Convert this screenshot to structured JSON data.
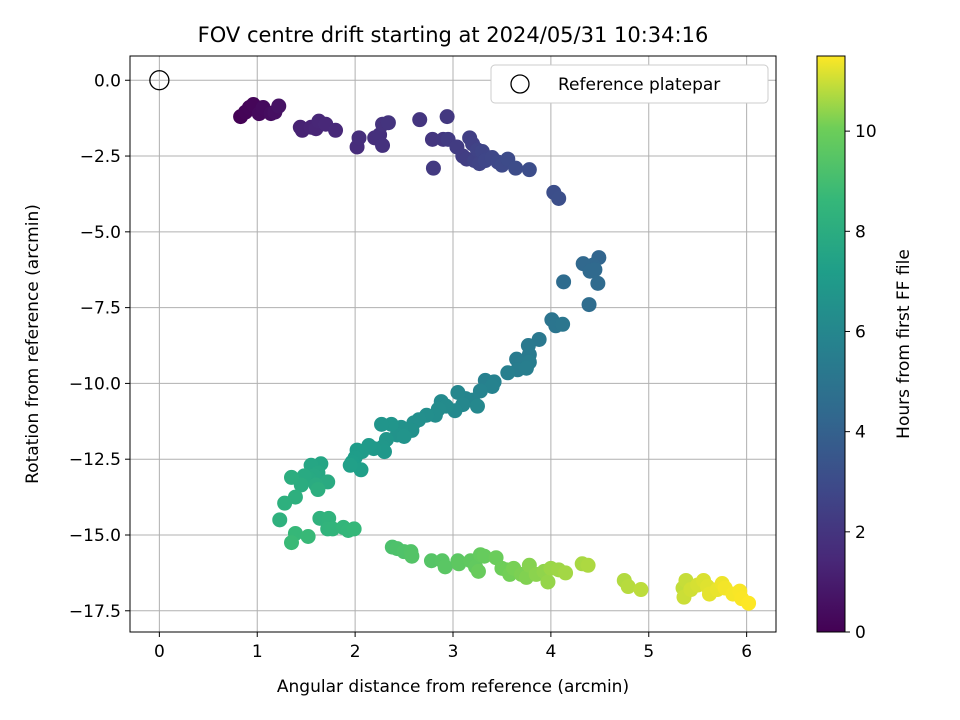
{
  "chart_data": {
    "type": "scatter",
    "title": "FOV centre drift starting at 2024/05/31 10:34:16",
    "xlabel": "Angular distance from reference (arcmin)",
    "ylabel": "Rotation from reference (arcmin)",
    "xlim": [
      -0.3,
      6.3
    ],
    "ylim": [
      -18.2,
      0.8
    ],
    "xticks": [
      "0",
      "1",
      "2",
      "3",
      "4",
      "5",
      "6"
    ],
    "yticks": [
      "0.0",
      "−2.5",
      "−5.0",
      "−7.5",
      "−10.0",
      "−12.5",
      "−15.0",
      "−17.5"
    ],
    "grid": true,
    "legend": {
      "position": "top-right",
      "label": "Reference platepar",
      "marker": "open-circle"
    },
    "reference_point": {
      "x": 0.0,
      "y": 0.0
    },
    "colorbar": {
      "label": "Hours from first FF file",
      "min": 0,
      "max": 11.5,
      "colormap": "viridis",
      "ticks": [
        "0",
        "2",
        "4",
        "6",
        "8",
        "10"
      ]
    },
    "points": [
      {
        "x": 0.83,
        "y": -1.2,
        "h": 0.05
      },
      {
        "x": 0.88,
        "y": -1.05,
        "h": 0.1
      },
      {
        "x": 0.92,
        "y": -0.9,
        "h": 0.15
      },
      {
        "x": 0.96,
        "y": -0.8,
        "h": 0.2
      },
      {
        "x": 1.02,
        "y": -1.1,
        "h": 0.3
      },
      {
        "x": 1.06,
        "y": -0.9,
        "h": 0.35
      },
      {
        "x": 1.14,
        "y": -1.1,
        "h": 0.45
      },
      {
        "x": 1.18,
        "y": -1.05,
        "h": 0.55
      },
      {
        "x": 1.22,
        "y": -0.85,
        "h": 0.65
      },
      {
        "x": 1.44,
        "y": -1.55,
        "h": 1.2
      },
      {
        "x": 1.46,
        "y": -1.65,
        "h": 1.25
      },
      {
        "x": 1.55,
        "y": -1.55,
        "h": 1.3
      },
      {
        "x": 1.6,
        "y": -1.6,
        "h": 1.35
      },
      {
        "x": 1.63,
        "y": -1.35,
        "h": 1.4
      },
      {
        "x": 1.7,
        "y": -1.45,
        "h": 1.45
      },
      {
        "x": 1.8,
        "y": -1.65,
        "h": 1.5
      },
      {
        "x": 2.02,
        "y": -2.2,
        "h": 1.65
      },
      {
        "x": 2.04,
        "y": -1.9,
        "h": 1.7
      },
      {
        "x": 2.2,
        "y": -1.9,
        "h": 1.75
      },
      {
        "x": 2.25,
        "y": -1.8,
        "h": 1.8
      },
      {
        "x": 2.28,
        "y": -2.15,
        "h": 1.85
      },
      {
        "x": 2.28,
        "y": -1.45,
        "h": 1.9
      },
      {
        "x": 2.34,
        "y": -1.4,
        "h": 1.95
      },
      {
        "x": 2.66,
        "y": -1.3,
        "h": 2.0
      },
      {
        "x": 2.79,
        "y": -1.95,
        "h": 2.05
      },
      {
        "x": 2.9,
        "y": -1.95,
        "h": 2.1
      },
      {
        "x": 2.94,
        "y": -1.2,
        "h": 2.15
      },
      {
        "x": 2.8,
        "y": -2.9,
        "h": 2.2
      },
      {
        "x": 2.95,
        "y": -1.95,
        "h": 2.25
      },
      {
        "x": 3.04,
        "y": -2.2,
        "h": 2.3
      },
      {
        "x": 3.1,
        "y": -2.5,
        "h": 2.35
      },
      {
        "x": 3.14,
        "y": -2.6,
        "h": 2.4
      },
      {
        "x": 3.17,
        "y": -1.9,
        "h": 2.45
      },
      {
        "x": 3.2,
        "y": -2.1,
        "h": 2.5
      },
      {
        "x": 3.22,
        "y": -2.65,
        "h": 2.55
      },
      {
        "x": 3.25,
        "y": -2.3,
        "h": 2.6
      },
      {
        "x": 3.27,
        "y": -2.75,
        "h": 2.65
      },
      {
        "x": 3.3,
        "y": -2.35,
        "h": 2.7
      },
      {
        "x": 3.33,
        "y": -2.65,
        "h": 2.75
      },
      {
        "x": 3.4,
        "y": -2.55,
        "h": 2.8
      },
      {
        "x": 3.46,
        "y": -2.7,
        "h": 2.85
      },
      {
        "x": 3.5,
        "y": -2.8,
        "h": 2.9
      },
      {
        "x": 3.56,
        "y": -2.6,
        "h": 2.95
      },
      {
        "x": 3.64,
        "y": -2.9,
        "h": 3.0
      },
      {
        "x": 3.78,
        "y": -2.95,
        "h": 3.05
      },
      {
        "x": 4.03,
        "y": -3.7,
        "h": 3.1
      },
      {
        "x": 4.08,
        "y": -3.9,
        "h": 3.15
      },
      {
        "x": 4.49,
        "y": -5.85,
        "h": 4.2
      },
      {
        "x": 4.43,
        "y": -6.1,
        "h": 4.3
      },
      {
        "x": 4.33,
        "y": -6.05,
        "h": 4.35
      },
      {
        "x": 4.4,
        "y": -6.3,
        "h": 4.4
      },
      {
        "x": 4.45,
        "y": -6.25,
        "h": 4.45
      },
      {
        "x": 4.48,
        "y": -6.7,
        "h": 4.5
      },
      {
        "x": 4.13,
        "y": -6.65,
        "h": 4.55
      },
      {
        "x": 4.39,
        "y": -7.4,
        "h": 4.6
      },
      {
        "x": 4.01,
        "y": -7.9,
        "h": 5.0
      },
      {
        "x": 4.05,
        "y": -8.1,
        "h": 5.05
      },
      {
        "x": 4.12,
        "y": -8.05,
        "h": 5.1
      },
      {
        "x": 3.88,
        "y": -8.55,
        "h": 5.2
      },
      {
        "x": 3.77,
        "y": -8.75,
        "h": 5.25
      },
      {
        "x": 3.78,
        "y": -9.05,
        "h": 5.3
      },
      {
        "x": 3.65,
        "y": -9.2,
        "h": 5.35
      },
      {
        "x": 3.7,
        "y": -9.35,
        "h": 5.4
      },
      {
        "x": 3.78,
        "y": -9.3,
        "h": 5.45
      },
      {
        "x": 3.66,
        "y": -9.55,
        "h": 5.5
      },
      {
        "x": 3.75,
        "y": -9.5,
        "h": 5.55
      },
      {
        "x": 3.56,
        "y": -9.65,
        "h": 5.6
      },
      {
        "x": 3.33,
        "y": -9.9,
        "h": 5.65
      },
      {
        "x": 3.42,
        "y": -9.95,
        "h": 5.7
      },
      {
        "x": 3.4,
        "y": -10.1,
        "h": 5.75
      },
      {
        "x": 3.28,
        "y": -10.25,
        "h": 5.8
      },
      {
        "x": 3.2,
        "y": -10.55,
        "h": 5.85
      },
      {
        "x": 3.13,
        "y": -10.5,
        "h": 5.9
      },
      {
        "x": 3.05,
        "y": -10.3,
        "h": 5.95
      },
      {
        "x": 3.1,
        "y": -10.7,
        "h": 6.0
      },
      {
        "x": 3.25,
        "y": -10.75,
        "h": 6.05
      },
      {
        "x": 3.02,
        "y": -10.9,
        "h": 6.1
      },
      {
        "x": 2.88,
        "y": -10.6,
        "h": 6.15
      },
      {
        "x": 2.93,
        "y": -10.75,
        "h": 6.2
      },
      {
        "x": 2.85,
        "y": -10.85,
        "h": 6.25
      },
      {
        "x": 2.82,
        "y": -11.05,
        "h": 6.3
      },
      {
        "x": 2.73,
        "y": -11.05,
        "h": 6.35
      },
      {
        "x": 2.65,
        "y": -11.2,
        "h": 6.4
      },
      {
        "x": 2.6,
        "y": -11.3,
        "h": 6.45
      },
      {
        "x": 2.58,
        "y": -11.55,
        "h": 6.5
      },
      {
        "x": 2.47,
        "y": -11.45,
        "h": 6.55
      },
      {
        "x": 2.43,
        "y": -11.7,
        "h": 6.6
      },
      {
        "x": 2.5,
        "y": -11.75,
        "h": 6.65
      },
      {
        "x": 2.37,
        "y": -11.35,
        "h": 6.7
      },
      {
        "x": 2.27,
        "y": -11.35,
        "h": 6.75
      },
      {
        "x": 2.32,
        "y": -11.85,
        "h": 6.8
      },
      {
        "x": 2.28,
        "y": -12.1,
        "h": 6.85
      },
      {
        "x": 2.3,
        "y": -12.25,
        "h": 6.9
      },
      {
        "x": 2.19,
        "y": -12.15,
        "h": 6.95
      },
      {
        "x": 2.14,
        "y": -12.05,
        "h": 7.0
      },
      {
        "x": 2.07,
        "y": -12.25,
        "h": 7.05
      },
      {
        "x": 2.02,
        "y": -12.2,
        "h": 7.1
      },
      {
        "x": 2.0,
        "y": -12.45,
        "h": 7.15
      },
      {
        "x": 1.97,
        "y": -12.6,
        "h": 7.2
      },
      {
        "x": 2.06,
        "y": -12.85,
        "h": 7.25
      },
      {
        "x": 1.95,
        "y": -12.7,
        "h": 7.3
      },
      {
        "x": 1.65,
        "y": -12.65,
        "h": 7.6
      },
      {
        "x": 1.55,
        "y": -12.7,
        "h": 7.65
      },
      {
        "x": 1.62,
        "y": -12.95,
        "h": 7.7
      },
      {
        "x": 1.58,
        "y": -13.05,
        "h": 7.75
      },
      {
        "x": 1.53,
        "y": -13.15,
        "h": 7.8
      },
      {
        "x": 1.48,
        "y": -13.05,
        "h": 7.85
      },
      {
        "x": 1.72,
        "y": -13.25,
        "h": 7.9
      },
      {
        "x": 1.6,
        "y": -13.35,
        "h": 7.95
      },
      {
        "x": 1.45,
        "y": -13.35,
        "h": 8.0
      },
      {
        "x": 1.35,
        "y": -13.1,
        "h": 8.05
      },
      {
        "x": 1.62,
        "y": -13.5,
        "h": 8.1
      },
      {
        "x": 1.39,
        "y": -13.75,
        "h": 8.15
      },
      {
        "x": 1.28,
        "y": -13.95,
        "h": 8.2
      },
      {
        "x": 1.23,
        "y": -14.5,
        "h": 8.25
      },
      {
        "x": 1.64,
        "y": -14.45,
        "h": 8.3
      },
      {
        "x": 1.73,
        "y": -14.45,
        "h": 8.35
      },
      {
        "x": 1.72,
        "y": -14.8,
        "h": 8.4
      },
      {
        "x": 1.77,
        "y": -14.8,
        "h": 8.45
      },
      {
        "x": 1.88,
        "y": -14.75,
        "h": 8.5
      },
      {
        "x": 1.93,
        "y": -14.85,
        "h": 8.55
      },
      {
        "x": 1.99,
        "y": -14.8,
        "h": 8.6
      },
      {
        "x": 1.39,
        "y": -14.95,
        "h": 8.65
      },
      {
        "x": 1.52,
        "y": -15.05,
        "h": 8.7
      },
      {
        "x": 1.35,
        "y": -15.25,
        "h": 8.75
      },
      {
        "x": 2.38,
        "y": -15.4,
        "h": 9.2
      },
      {
        "x": 2.43,
        "y": -15.45,
        "h": 9.25
      },
      {
        "x": 2.5,
        "y": -15.55,
        "h": 9.3
      },
      {
        "x": 2.57,
        "y": -15.55,
        "h": 9.35
      },
      {
        "x": 2.58,
        "y": -15.7,
        "h": 9.4
      },
      {
        "x": 2.78,
        "y": -15.85,
        "h": 9.45
      },
      {
        "x": 2.89,
        "y": -15.85,
        "h": 9.5
      },
      {
        "x": 2.92,
        "y": -16.05,
        "h": 9.55
      },
      {
        "x": 3.05,
        "y": -15.85,
        "h": 9.6
      },
      {
        "x": 3.06,
        "y": -15.95,
        "h": 9.65
      },
      {
        "x": 3.18,
        "y": -15.85,
        "h": 9.7
      },
      {
        "x": 3.23,
        "y": -16.05,
        "h": 9.75
      },
      {
        "x": 3.28,
        "y": -15.65,
        "h": 9.8
      },
      {
        "x": 3.32,
        "y": -15.7,
        "h": 9.85
      },
      {
        "x": 3.26,
        "y": -16.2,
        "h": 9.9
      },
      {
        "x": 3.44,
        "y": -15.75,
        "h": 9.95
      },
      {
        "x": 3.5,
        "y": -16.1,
        "h": 10.0
      },
      {
        "x": 3.55,
        "y": -16.15,
        "h": 10.05
      },
      {
        "x": 3.58,
        "y": -16.3,
        "h": 10.1
      },
      {
        "x": 3.62,
        "y": -16.1,
        "h": 10.15
      },
      {
        "x": 3.7,
        "y": -16.3,
        "h": 10.2
      },
      {
        "x": 3.75,
        "y": -16.4,
        "h": 10.25
      },
      {
        "x": 3.78,
        "y": -16.0,
        "h": 10.3
      },
      {
        "x": 3.85,
        "y": -16.3,
        "h": 10.35
      },
      {
        "x": 3.93,
        "y": -16.2,
        "h": 10.4
      },
      {
        "x": 3.97,
        "y": -16.55,
        "h": 10.45
      },
      {
        "x": 4.0,
        "y": -16.1,
        "h": 10.5
      },
      {
        "x": 4.08,
        "y": -16.15,
        "h": 10.55
      },
      {
        "x": 4.15,
        "y": -16.25,
        "h": 10.6
      },
      {
        "x": 4.32,
        "y": -15.95,
        "h": 10.65
      },
      {
        "x": 4.38,
        "y": -16.0,
        "h": 10.7
      },
      {
        "x": 4.75,
        "y": -16.5,
        "h": 10.75
      },
      {
        "x": 4.79,
        "y": -16.7,
        "h": 10.8
      },
      {
        "x": 4.92,
        "y": -16.8,
        "h": 10.85
      },
      {
        "x": 5.35,
        "y": -16.75,
        "h": 10.9
      },
      {
        "x": 5.38,
        "y": -16.5,
        "h": 10.95
      },
      {
        "x": 5.36,
        "y": -17.05,
        "h": 11.0
      },
      {
        "x": 5.43,
        "y": -16.8,
        "h": 11.05
      },
      {
        "x": 5.5,
        "y": -16.65,
        "h": 11.1
      },
      {
        "x": 5.56,
        "y": -16.5,
        "h": 11.15
      },
      {
        "x": 5.6,
        "y": -16.7,
        "h": 11.2
      },
      {
        "x": 5.62,
        "y": -16.95,
        "h": 11.25
      },
      {
        "x": 5.7,
        "y": -16.8,
        "h": 11.3
      },
      {
        "x": 5.75,
        "y": -16.6,
        "h": 11.35
      },
      {
        "x": 5.78,
        "y": -16.75,
        "h": 11.4
      },
      {
        "x": 5.86,
        "y": -16.95,
        "h": 11.42
      },
      {
        "x": 5.93,
        "y": -16.85,
        "h": 11.45
      },
      {
        "x": 5.95,
        "y": -17.1,
        "h": 11.47
      },
      {
        "x": 6.02,
        "y": -17.25,
        "h": 11.5
      }
    ]
  }
}
